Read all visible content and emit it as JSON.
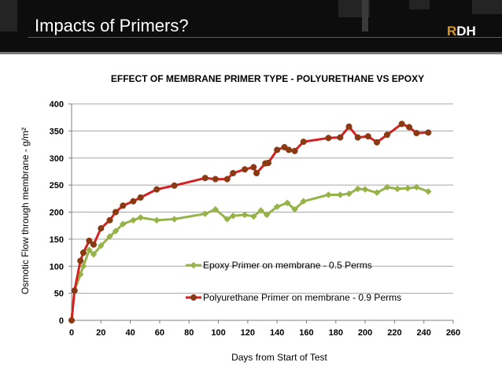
{
  "slide": {
    "title": "Impacts of Primers?",
    "logo_accent": "R",
    "logo_rest": "DH"
  },
  "colors": {
    "epoxy": "#96b34a",
    "polyurethane": "#d42020",
    "polyurethane_marker": "#8a3a12",
    "header_bg": "#0d0d0d",
    "logo_accent": "#d89a2a"
  },
  "chart_data": {
    "type": "line",
    "title": "EFFECT OF MEMBRANE PRIMER TYPE - POLYURETHANE VS EPOXY",
    "xlabel": "Days from Start of Test",
    "ylabel": "Osmotic Flow through membrane - g/m²",
    "xlim": [
      0,
      260
    ],
    "ylim": [
      0,
      400
    ],
    "xticks": [
      0,
      20,
      40,
      60,
      80,
      100,
      120,
      140,
      160,
      180,
      200,
      220,
      240,
      260
    ],
    "yticks": [
      0,
      50,
      100,
      150,
      200,
      250,
      300,
      350,
      400
    ],
    "grid": "horizontal",
    "legend_position": "inside-bottom-right",
    "series": [
      {
        "name": "Epoxy Primer on membrane - 0.5 Perms",
        "marker": "diamond",
        "x": [
          0,
          2,
          6,
          8,
          12,
          15,
          20,
          26,
          30,
          35,
          42,
          47,
          58,
          70,
          91,
          98,
          106,
          110,
          118,
          124,
          129,
          133,
          140,
          147,
          152,
          158,
          175,
          183,
          189,
          195,
          200,
          208,
          215,
          222,
          229,
          235,
          243
        ],
        "y": [
          0,
          55,
          85,
          100,
          130,
          122,
          138,
          155,
          165,
          178,
          185,
          190,
          185,
          187,
          197,
          205,
          187,
          193,
          195,
          192,
          203,
          195,
          210,
          217,
          205,
          220,
          232,
          232,
          234,
          243,
          242,
          236,
          246,
          243,
          244,
          246,
          238
        ]
      },
      {
        "name": "Polyurethane Primer on membrane - 0.9 Perms",
        "marker": "circle",
        "x": [
          0,
          2,
          6,
          8,
          12,
          15,
          20,
          26,
          30,
          35,
          42,
          47,
          58,
          70,
          91,
          98,
          106,
          110,
          118,
          124,
          126,
          132,
          134,
          140,
          145,
          148,
          152,
          158,
          175,
          183,
          189,
          195,
          202,
          208,
          215,
          225,
          230,
          235,
          243
        ],
        "y": [
          0,
          55,
          110,
          125,
          147,
          140,
          170,
          185,
          200,
          212,
          220,
          227,
          242,
          249,
          263,
          261,
          261,
          272,
          279,
          283,
          272,
          290,
          291,
          315,
          320,
          315,
          313,
          330,
          337,
          338,
          358,
          338,
          340,
          329,
          343,
          363,
          357,
          346,
          347
        ]
      }
    ]
  }
}
